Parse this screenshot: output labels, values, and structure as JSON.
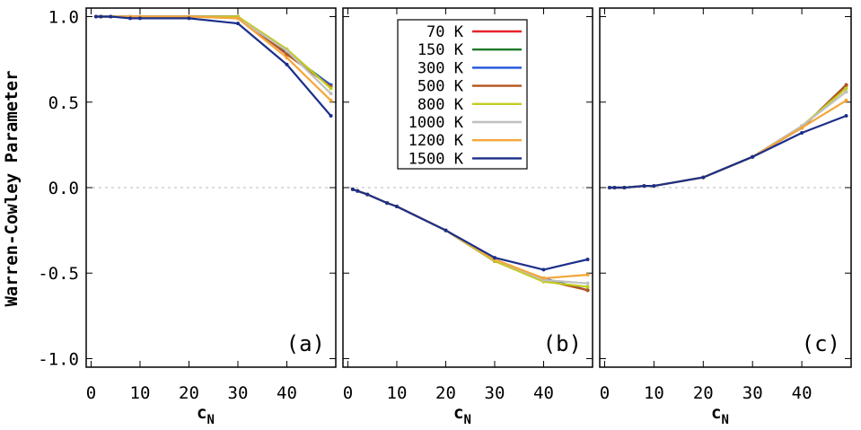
{
  "chart_data": {
    "type": "line",
    "ylabel": "Warren-Cowley Parameter",
    "xlabel_main": "c",
    "xlabel_sub": "N",
    "ylim": [
      -1.05,
      1.05
    ],
    "xlim": [
      -1,
      50
    ],
    "yticks": [
      {
        "value": 1.0,
        "label": "1.0"
      },
      {
        "value": 0.5,
        "label": "0.5"
      },
      {
        "value": 0.0,
        "label": "0.0"
      },
      {
        "value": -0.5,
        "label": "-0.5"
      },
      {
        "value": -1.0,
        "label": "-1.0"
      }
    ],
    "xticks": [
      {
        "value": 0,
        "label": "0"
      },
      {
        "value": 10,
        "label": "10"
      },
      {
        "value": 20,
        "label": "20"
      },
      {
        "value": 30,
        "label": "30"
      },
      {
        "value": 40,
        "label": "40"
      }
    ],
    "reference_line": 0,
    "legend": [
      {
        "name": "70 K",
        "color": "#e8232b"
      },
      {
        "name": "150 K",
        "color": "#1e7a2a"
      },
      {
        "name": "300 K",
        "color": "#2255dd"
      },
      {
        "name": "500 K",
        "color": "#b5541c"
      },
      {
        "name": "800 K",
        "color": "#c2cc22"
      },
      {
        "name": "1000 K",
        "color": "#c0c0c0"
      },
      {
        "name": "1200 K",
        "color": "#f5a63a"
      },
      {
        "name": "1500 K",
        "color": "#1c2f8a"
      }
    ],
    "panels": [
      {
        "label": "(a)",
        "x": [
          1,
          2,
          4,
          8,
          10,
          20,
          30,
          40,
          49
        ],
        "series": [
          {
            "name": "70 K",
            "values": [
              1.0,
              1.0,
              1.0,
              1.0,
              1.0,
              1.0,
              1.0,
              0.78,
              0.6
            ]
          },
          {
            "name": "150 K",
            "values": [
              1.0,
              1.0,
              1.0,
              1.0,
              1.0,
              1.0,
              1.0,
              0.79,
              0.6
            ]
          },
          {
            "name": "300 K",
            "values": [
              1.0,
              1.0,
              1.0,
              1.0,
              1.0,
              1.0,
              1.0,
              0.78,
              0.6
            ]
          },
          {
            "name": "500 K",
            "values": [
              1.0,
              1.0,
              1.0,
              1.0,
              1.0,
              1.0,
              1.0,
              0.78,
              0.59
            ]
          },
          {
            "name": "800 K",
            "values": [
              1.0,
              1.0,
              1.0,
              1.0,
              1.0,
              1.0,
              1.0,
              0.81,
              0.58
            ]
          },
          {
            "name": "1000 K",
            "values": [
              1.0,
              1.0,
              1.0,
              1.0,
              1.0,
              1.0,
              0.99,
              0.8,
              0.55
            ]
          },
          {
            "name": "1200 K",
            "values": [
              1.0,
              1.0,
              1.0,
              1.0,
              1.0,
              1.0,
              0.99,
              0.76,
              0.51
            ]
          },
          {
            "name": "1500 K",
            "values": [
              1.0,
              1.0,
              1.0,
              0.99,
              0.99,
              0.99,
              0.96,
              0.72,
              0.42
            ]
          }
        ]
      },
      {
        "label": "(b)",
        "x": [
          1,
          2,
          4,
          8,
          10,
          20,
          30,
          40,
          49
        ],
        "series": [
          {
            "name": "70 K",
            "values": [
              -0.01,
              -0.02,
              -0.04,
              -0.09,
              -0.11,
              -0.25,
              -0.43,
              -0.53,
              -0.6
            ]
          },
          {
            "name": "150 K",
            "values": [
              -0.01,
              -0.02,
              -0.04,
              -0.09,
              -0.11,
              -0.25,
              -0.43,
              -0.53,
              -0.6
            ]
          },
          {
            "name": "300 K",
            "values": [
              -0.01,
              -0.02,
              -0.04,
              -0.09,
              -0.11,
              -0.25,
              -0.43,
              -0.53,
              -0.6
            ]
          },
          {
            "name": "500 K",
            "values": [
              -0.01,
              -0.02,
              -0.04,
              -0.09,
              -0.11,
              -0.25,
              -0.43,
              -0.54,
              -0.6
            ]
          },
          {
            "name": "800 K",
            "values": [
              -0.01,
              -0.02,
              -0.04,
              -0.09,
              -0.11,
              -0.25,
              -0.43,
              -0.55,
              -0.58
            ]
          },
          {
            "name": "1000 K",
            "values": [
              -0.01,
              -0.02,
              -0.04,
              -0.09,
              -0.11,
              -0.25,
              -0.42,
              -0.54,
              -0.56
            ]
          },
          {
            "name": "1200 K",
            "values": [
              -0.01,
              -0.02,
              -0.04,
              -0.09,
              -0.11,
              -0.25,
              -0.42,
              -0.53,
              -0.51
            ]
          },
          {
            "name": "1500 K",
            "values": [
              -0.01,
              -0.02,
              -0.04,
              -0.09,
              -0.11,
              -0.25,
              -0.41,
              -0.48,
              -0.42
            ]
          }
        ]
      },
      {
        "label": "(c)",
        "x": [
          1,
          2,
          4,
          8,
          10,
          20,
          30,
          40,
          49
        ],
        "series": [
          {
            "name": "70 K",
            "values": [
              0.0,
              0.0,
              0.0,
              0.01,
              0.01,
              0.06,
              0.18,
              0.35,
              0.6
            ]
          },
          {
            "name": "150 K",
            "values": [
              0.0,
              0.0,
              0.0,
              0.01,
              0.01,
              0.06,
              0.18,
              0.35,
              0.6
            ]
          },
          {
            "name": "300 K",
            "values": [
              0.0,
              0.0,
              0.0,
              0.01,
              0.01,
              0.06,
              0.18,
              0.35,
              0.6
            ]
          },
          {
            "name": "500 K",
            "values": [
              0.0,
              0.0,
              0.0,
              0.01,
              0.01,
              0.06,
              0.18,
              0.35,
              0.6
            ]
          },
          {
            "name": "800 K",
            "values": [
              0.0,
              0.0,
              0.0,
              0.01,
              0.01,
              0.06,
              0.18,
              0.36,
              0.58
            ]
          },
          {
            "name": "1000 K",
            "values": [
              0.0,
              0.0,
              0.0,
              0.01,
              0.01,
              0.06,
              0.18,
              0.36,
              0.56
            ]
          },
          {
            "name": "1200 K",
            "values": [
              0.0,
              0.0,
              0.0,
              0.01,
              0.01,
              0.06,
              0.18,
              0.35,
              0.51
            ]
          },
          {
            "name": "1500 K",
            "values": [
              0.0,
              0.0,
              0.0,
              0.01,
              0.01,
              0.06,
              0.18,
              0.32,
              0.42
            ]
          }
        ]
      }
    ]
  }
}
